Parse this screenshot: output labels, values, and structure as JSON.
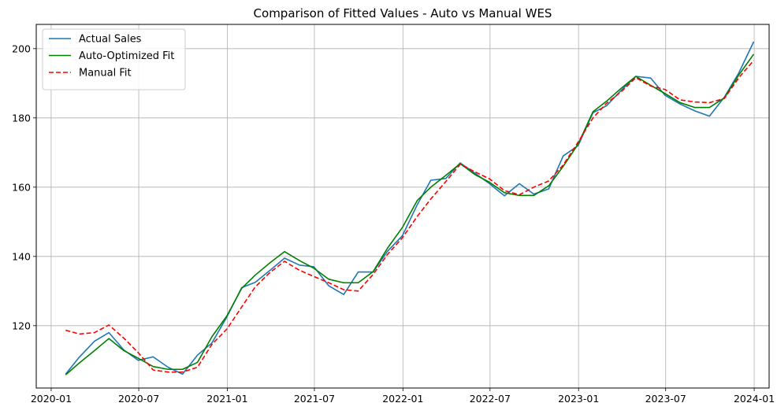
{
  "chart_data": {
    "type": "line",
    "title": "Comparison of Fitted Values - Auto vs Manual WES",
    "xlabel": "",
    "ylabel": "",
    "x_range": [
      "2019-12-01",
      "2024-02-01"
    ],
    "ylim": [
      102,
      207
    ],
    "grid": true,
    "legend_position": "top-left",
    "x_ticks": [
      {
        "date": "2020-01-01",
        "label": "2020-01"
      },
      {
        "date": "2020-07-01",
        "label": "2020-07"
      },
      {
        "date": "2021-01-01",
        "label": "2021-01"
      },
      {
        "date": "2021-07-01",
        "label": "2021-07"
      },
      {
        "date": "2022-01-01",
        "label": "2022-01"
      },
      {
        "date": "2022-07-01",
        "label": "2022-07"
      },
      {
        "date": "2023-01-01",
        "label": "2023-01"
      },
      {
        "date": "2023-07-01",
        "label": "2023-07"
      },
      {
        "date": "2024-01-01",
        "label": "2024-01"
      }
    ],
    "y_ticks": [
      120,
      140,
      160,
      180,
      200
    ],
    "x": [
      "2020-01-31",
      "2020-02-29",
      "2020-03-31",
      "2020-04-30",
      "2020-05-31",
      "2020-06-30",
      "2020-07-31",
      "2020-08-31",
      "2020-09-30",
      "2020-10-31",
      "2020-11-30",
      "2020-12-31",
      "2021-01-31",
      "2021-02-28",
      "2021-03-31",
      "2021-04-30",
      "2021-05-31",
      "2021-06-30",
      "2021-07-31",
      "2021-08-31",
      "2021-09-30",
      "2021-10-31",
      "2021-11-30",
      "2021-12-31",
      "2022-01-31",
      "2022-02-28",
      "2022-03-31",
      "2022-04-30",
      "2022-05-31",
      "2022-06-30",
      "2022-07-31",
      "2022-08-31",
      "2022-09-30",
      "2022-10-31",
      "2022-11-30",
      "2022-12-31",
      "2023-01-31",
      "2023-02-28",
      "2023-03-31",
      "2023-04-30",
      "2023-05-31",
      "2023-06-30",
      "2023-07-31",
      "2023-08-31",
      "2023-09-30",
      "2023-10-31",
      "2023-11-30",
      "2023-12-31"
    ],
    "series": [
      {
        "name": "Actual Sales",
        "color": "#1f77b4",
        "style": "solid",
        "values": [
          106,
          111,
          115.5,
          118,
          113,
          110,
          111,
          108,
          106,
          111.5,
          115,
          122.5,
          131,
          132.5,
          136,
          139.5,
          137.5,
          137,
          131.5,
          129,
          135.5,
          135.5,
          141.5,
          146,
          155,
          162,
          162.5,
          167,
          164,
          161,
          157.5,
          161,
          158,
          159.5,
          169,
          172,
          181.5,
          183.5,
          188,
          192,
          191.5,
          186.5,
          184,
          182,
          180.5,
          186,
          193,
          202
        ]
      },
      {
        "name": "Auto-Optimized Fit",
        "color": "#008000",
        "style": "solid",
        "values": [
          105.8,
          109.3,
          112.8,
          116.3,
          112.8,
          110.6,
          108.2,
          107.4,
          107.4,
          109.4,
          116.8,
          122.8,
          130.8,
          134.6,
          138.2,
          141.4,
          138.8,
          136.6,
          133.4,
          132.4,
          132.4,
          135.6,
          142.4,
          148.4,
          156.2,
          160.0,
          163.4,
          166.8,
          163.6,
          161.4,
          158.4,
          157.6,
          157.6,
          160.4,
          166.0,
          172.4,
          181.8,
          184.8,
          188.6,
          192.0,
          189.4,
          187.0,
          184.4,
          183.0,
          183.0,
          185.8,
          192.4,
          198.4
        ]
      },
      {
        "name": "Manual Fit",
        "color": "#ff0000",
        "style": "dashed",
        "values": [
          118.7,
          117.6,
          118.0,
          120.2,
          116.4,
          112.2,
          107.2,
          106.6,
          106.6,
          108.0,
          114.6,
          119.0,
          125.4,
          131.2,
          135.4,
          138.6,
          136.0,
          134.2,
          132.4,
          130.4,
          130.0,
          134.8,
          140.6,
          145.4,
          151.6,
          156.6,
          161.6,
          166.6,
          164.4,
          162.4,
          159.0,
          157.8,
          160.0,
          161.8,
          166.4,
          173.0,
          180.0,
          184.2,
          187.6,
          191.6,
          189.2,
          188.2,
          185.2,
          184.6,
          184.4,
          185.6,
          191.6,
          196.6
        ]
      }
    ]
  }
}
